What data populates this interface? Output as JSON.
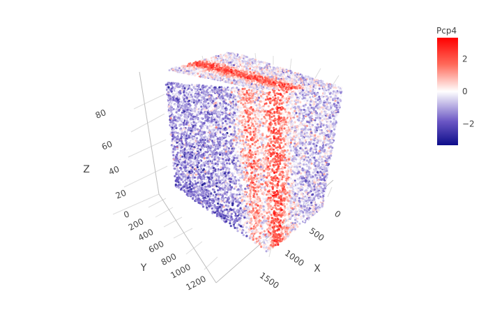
{
  "chart_data": {
    "type": "scatter",
    "projection": "3d",
    "axes": {
      "x": {
        "title": "X",
        "ticks": [
          "0",
          "500",
          "1000",
          "1500"
        ],
        "range": [
          -150,
          1700
        ]
      },
      "y": {
        "title": "Y",
        "ticks": [
          "200",
          "400",
          "600",
          "800",
          "1000",
          "1200"
        ],
        "range": [
          0,
          1300
        ]
      },
      "z": {
        "title": "Z",
        "ticks": [
          "0",
          "20",
          "40",
          "60",
          "80"
        ],
        "range": [
          0,
          90
        ]
      }
    },
    "grid": true,
    "colorbar": {
      "title": "Pcp4",
      "ticks": [
        "2",
        "0",
        "−2"
      ],
      "tick_values": [
        2,
        0,
        -2
      ],
      "range": [
        -3.3,
        3.3
      ],
      "colors": [
        "#0d0d8a",
        "#6a56c4",
        "#ffffff",
        "#ff6b5b",
        "#ff0000"
      ],
      "placement": "right"
    },
    "colors": {
      "grid": "#dcdcdc",
      "axis_line": "#bdbdbd",
      "text": "#444444"
    },
    "summary": {
      "approx_points": 15000,
      "expression_pattern": "high Pcp4 band along an X-Z plane slice; low values elsewhere",
      "min_value": -3.3,
      "max_value": 3.3
    }
  }
}
